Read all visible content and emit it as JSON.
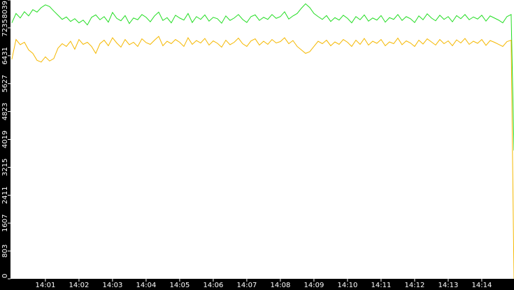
{
  "chart_data": {
    "type": "line",
    "x": [
      840,
      840.125,
      840.25,
      840.375,
      840.5,
      840.625,
      840.75,
      840.875,
      841,
      841.125,
      841.25,
      841.375,
      841.5,
      841.625,
      841.75,
      841.875,
      842,
      842.125,
      842.25,
      842.375,
      842.5,
      842.625,
      842.75,
      842.875,
      843,
      843.125,
      843.25,
      843.375,
      843.5,
      843.625,
      843.75,
      843.875,
      844,
      844.125,
      844.25,
      844.375,
      844.5,
      844.625,
      844.75,
      844.875,
      845,
      845.125,
      845.25,
      845.375,
      845.5,
      845.625,
      845.75,
      845.875,
      846,
      846.125,
      846.25,
      846.375,
      846.5,
      846.625,
      846.75,
      846.875,
      847,
      847.125,
      847.25,
      847.375,
      847.5,
      847.625,
      847.75,
      847.875,
      848,
      848.125,
      848.25,
      848.375,
      848.5,
      848.625,
      848.75,
      848.875,
      849,
      849.125,
      849.25,
      849.375,
      849.5,
      849.625,
      849.75,
      849.875,
      850,
      850.125,
      850.25,
      850.375,
      850.5,
      850.625,
      850.75,
      850.875,
      851,
      851.125,
      851.25,
      851.375,
      851.5,
      851.625,
      851.75,
      851.875,
      852,
      852.125,
      852.25,
      852.375,
      852.5,
      852.625,
      852.75,
      852.875,
      853,
      853.125,
      853.25,
      853.375,
      853.5,
      853.625,
      853.75,
      853.875,
      854,
      854.125,
      854.25,
      854.375,
      854.5,
      854.625,
      854.75,
      854.875,
      854.96
    ],
    "series": [
      {
        "color": "#22dd22",
        "values": [
          7380,
          7650,
          7520,
          7700,
          7580,
          7760,
          7690,
          7820,
          7900,
          7850,
          7720,
          7600,
          7480,
          7550,
          7420,
          7500,
          7380,
          7460,
          7320,
          7540,
          7610,
          7470,
          7560,
          7400,
          7680,
          7510,
          7440,
          7590,
          7360,
          7520,
          7470,
          7620,
          7540,
          7410,
          7580,
          7690,
          7450,
          7530,
          7380,
          7600,
          7520,
          7460,
          7650,
          7390,
          7560,
          7480,
          7610,
          7430,
          7540,
          7500,
          7370,
          7580,
          7450,
          7520,
          7620,
          7480,
          7390,
          7560,
          7610,
          7450,
          7540,
          7480,
          7620,
          7510,
          7560,
          7700,
          7490,
          7580,
          7650,
          7800,
          7930,
          7820,
          7650,
          7560,
          7480,
          7590,
          7420,
          7530,
          7460,
          7600,
          7510,
          7380,
          7560,
          7470,
          7610,
          7430,
          7520,
          7460,
          7590,
          7400,
          7530,
          7480,
          7620,
          7450,
          7560,
          7500,
          7390,
          7580,
          7470,
          7640,
          7520,
          7440,
          7600,
          7480,
          7560,
          7410,
          7590,
          7500,
          7620,
          7470,
          7550,
          7490,
          7600,
          7430,
          7580,
          7520,
          7460,
          7380,
          7560,
          7620,
          3700
        ]
      },
      {
        "color": "#f5b800",
        "values": [
          6330,
          6900,
          6750,
          6820,
          6600,
          6500,
          6300,
          6250,
          6400,
          6280,
          6350,
          6650,
          6780,
          6700,
          6850,
          6620,
          6900,
          6760,
          6820,
          6700,
          6500,
          6780,
          6880,
          6720,
          6950,
          6800,
          6680,
          6900,
          6750,
          6820,
          6700,
          6920,
          6810,
          6760,
          6880,
          6990,
          6720,
          6850,
          6780,
          6900,
          6820,
          6700,
          6950,
          6760,
          6870,
          6800,
          6930,
          6740,
          6860,
          6790,
          6680,
          6880,
          6750,
          6820,
          6940,
          6780,
          6700,
          6860,
          6920,
          6740,
          6850,
          6760,
          6900,
          6800,
          6840,
          6950,
          6780,
          6870,
          6700,
          6600,
          6500,
          6550,
          6700,
          6850,
          6780,
          6880,
          6720,
          6830,
          6760,
          6900,
          6820,
          6700,
          6880,
          6760,
          6930,
          6740,
          6850,
          6790,
          6900,
          6720,
          6830,
          6780,
          6940,
          6750,
          6860,
          6800,
          6700,
          6880,
          6770,
          6920,
          6830,
          6740,
          6900,
          6780,
          6860,
          6720,
          6890,
          6800,
          6930,
          6760,
          6850,
          6790,
          6900,
          6730,
          6870,
          6820,
          6760,
          6700,
          6840,
          6880,
          0
        ]
      }
    ],
    "xlim": [
      839.96,
      854.96
    ],
    "xticks": [
      {
        "value": 841,
        "label": "14:01"
      },
      {
        "value": 842,
        "label": "14:02"
      },
      {
        "value": 843,
        "label": "14:03"
      },
      {
        "value": 844,
        "label": "14:04"
      },
      {
        "value": 845,
        "label": "14:05"
      },
      {
        "value": 846,
        "label": "14:06"
      },
      {
        "value": 847,
        "label": "14:07"
      },
      {
        "value": 848,
        "label": "14:08"
      },
      {
        "value": 849,
        "label": "14:09"
      },
      {
        "value": 850,
        "label": "14:10"
      },
      {
        "value": 851,
        "label": "14:11"
      },
      {
        "value": 852,
        "label": "14:12"
      },
      {
        "value": 853,
        "label": "14:13"
      },
      {
        "value": 854,
        "label": "14:14"
      }
    ],
    "ylim": [
      0,
      8039
    ],
    "yticks": [
      0,
      803,
      1607,
      2411,
      3215,
      4019,
      4823,
      5627,
      6431,
      7235,
      8039
    ]
  }
}
